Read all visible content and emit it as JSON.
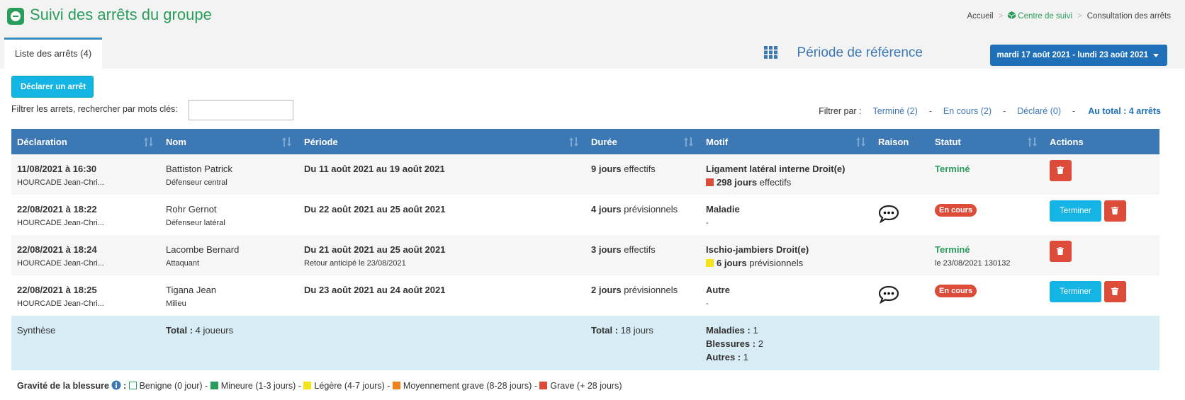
{
  "header": {
    "title": "Suivi des arrêts du groupe",
    "breadcrumb": [
      "Accueil",
      "Centre de suivi",
      "Consultation des arrêts"
    ]
  },
  "tab": "Liste des arrêts (4)",
  "period": {
    "label": "Période de référence",
    "button": "mardi 17 août 2021 - lundi 23 août 2021"
  },
  "declare_button": "Déclarer un arrêt",
  "search_label": "Filtrer les arrets, rechercher par mots clés:",
  "filters": {
    "label": "Filtrer par :",
    "separator": "-",
    "items": [
      "Terminé (2)",
      "En cours (2)",
      "Déclaré (0)"
    ],
    "total": "Au total : 4 arrêts"
  },
  "table": {
    "columns": [
      "Déclaration",
      "Nom",
      "Période",
      "Durée",
      "Motif",
      "Raison",
      "Statut",
      "Actions"
    ],
    "rows": [
      {
        "date": "11/08/2021 à 16:30",
        "by": "HOURCADE Jean-Chri...",
        "name": "Battiston Patrick",
        "position": "Défenseur central",
        "period": "Du 11 août 2021 au 19 août 2021",
        "duration": "9 jours",
        "duration_type": "effectifs",
        "reason": "Ligament latéral interne Droit(e)",
        "detail": {
          "color": "#dd4b39",
          "days": "298 jours",
          "type": "effectifs"
        },
        "comment": false,
        "status": "Terminé",
        "status_style": "done"
      },
      {
        "date": "22/08/2021 à 18:22",
        "by": "HOURCADE Jean-Chri...",
        "name": "Rohr Gernot",
        "position": "Défenseur latéral",
        "period": "Du 22 août 2021 au 25 août 2021",
        "duration": "4 jours",
        "duration_type": "prévisionnels",
        "reason": "Maladie",
        "detail": "-",
        "comment": true,
        "status": "En cours",
        "status_style": "badge",
        "finish_button": "Terminer"
      },
      {
        "date": "22/08/2021 à 18:24",
        "by": "HOURCADE Jean-Chri...",
        "name": "Lacombe Bernard",
        "position": "Attaquant",
        "period": "Du 21 août 2021 au 25 août 2021",
        "period_note": "Retour anticipé le 23/08/2021",
        "duration": "3 jours",
        "duration_type": "effectifs",
        "reason": "Ischio-jambiers Droit(e)",
        "detail": {
          "color": "#f5e31a",
          "days": "6 jours",
          "type": "prévisionnels"
        },
        "comment": false,
        "status": "Terminé",
        "status_style": "done",
        "status_note": "le 23/08/2021 130132"
      },
      {
        "date": "22/08/2021 à 18:25",
        "by": "HOURCADE Jean-Chri...",
        "name": "Tigana Jean",
        "position": "Milieu",
        "period": "Du 23 août 2021 au 24 août 2021",
        "duration": "2 jours",
        "duration_type": "prévisionnels",
        "reason": "Autre",
        "detail": "-",
        "comment": true,
        "status": "En cours",
        "status_style": "badge",
        "finish_button": "Terminer"
      }
    ],
    "summary": {
      "label": "Synthèse",
      "players_label": "Total :",
      "players": "4 joueurs",
      "days_label": "Total :",
      "days": "18 jours",
      "counts": [
        {
          "label": "Maladies :",
          "value": 1
        },
        {
          "label": "Blessures :",
          "value": 2
        },
        {
          "label": "Autres :",
          "value": 1
        }
      ]
    }
  },
  "legend": {
    "label": "Gravité de la blessure",
    "suffix": ":",
    "separator": "-",
    "items": [
      {
        "name": "Benigne (0 jour)",
        "color": "#ffffff"
      },
      {
        "name": "Mineure (1-3 jours)",
        "color": "#2a9d5c"
      },
      {
        "name": "Légère (4-7 jours)",
        "color": "#f5e31a"
      },
      {
        "name": "Moyennement grave (8-28 jours)",
        "color": "#f0821e"
      },
      {
        "name": "Grave (+ 28 jours)",
        "color": "#dd4b39"
      }
    ]
  }
}
